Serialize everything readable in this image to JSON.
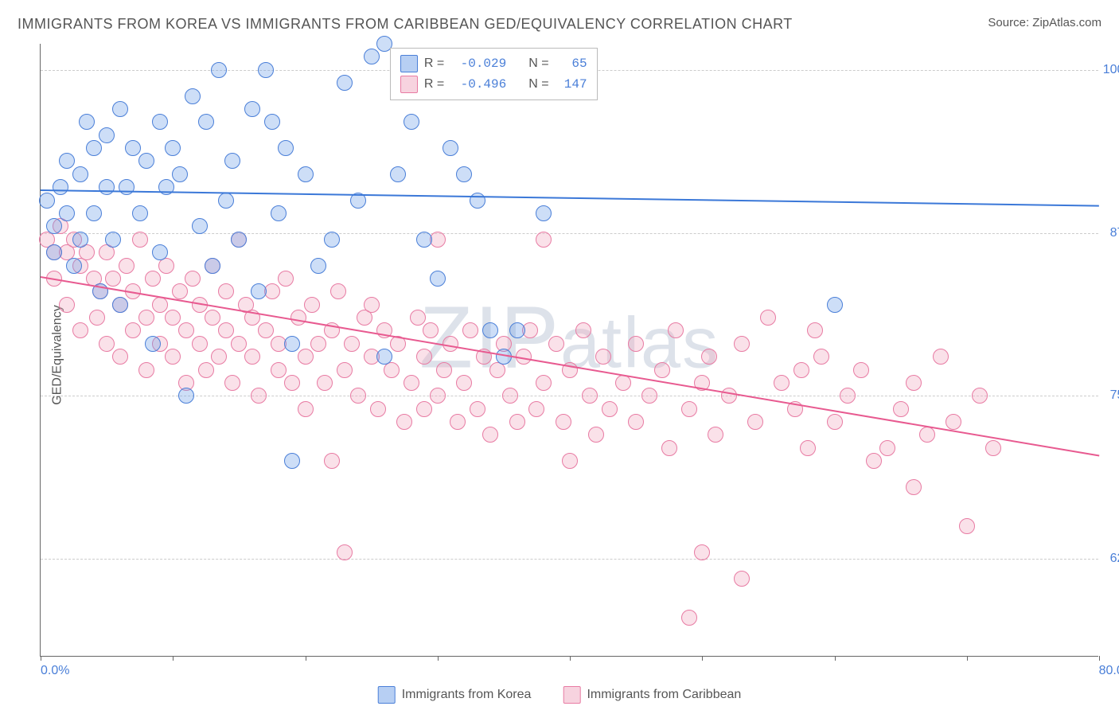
{
  "title": "IMMIGRANTS FROM KOREA VS IMMIGRANTS FROM CARIBBEAN GED/EQUIVALENCY CORRELATION CHART",
  "source_label": "Source:",
  "source_name": "ZipAtlas.com",
  "watermark": "ZIPatlas",
  "chart": {
    "type": "scatter",
    "xlim": [
      0,
      80
    ],
    "ylim": [
      55,
      102
    ],
    "xtick_labels": [
      "0.0%",
      "80.0%"
    ],
    "xtick_positions": [
      0,
      80
    ],
    "xtick_marks": [
      0,
      10,
      20,
      30,
      40,
      50,
      60,
      70,
      80
    ],
    "ytick_labels": [
      "62.5%",
      "75.0%",
      "87.5%",
      "100.0%"
    ],
    "ytick_positions": [
      62.5,
      75.0,
      87.5,
      100.0
    ],
    "ylabel": "GED/Equivalency",
    "background_color": "#ffffff",
    "grid_color": "#cccccc",
    "marker_radius": 10,
    "marker_opacity": 0.45,
    "series": [
      {
        "name": "Immigrants from Korea",
        "color": "#6fa0e8",
        "stroke": "#4a7fd8",
        "fill": "rgba(111,160,232,0.35)",
        "R": "-0.029",
        "N": "65",
        "regression": {
          "x1": 0,
          "y1": 90.8,
          "x2": 80,
          "y2": 89.6,
          "color": "#3b78d8",
          "width": 2
        },
        "points": [
          [
            0.5,
            90
          ],
          [
            1,
            88
          ],
          [
            1,
            86
          ],
          [
            1.5,
            91
          ],
          [
            2,
            89
          ],
          [
            2,
            93
          ],
          [
            2.5,
            85
          ],
          [
            3,
            92
          ],
          [
            3,
            87
          ],
          [
            3.5,
            96
          ],
          [
            4,
            94
          ],
          [
            4,
            89
          ],
          [
            4.5,
            83
          ],
          [
            5,
            91
          ],
          [
            5,
            95
          ],
          [
            5.5,
            87
          ],
          [
            6,
            97
          ],
          [
            6,
            82
          ],
          [
            6.5,
            91
          ],
          [
            7,
            94
          ],
          [
            7.5,
            89
          ],
          [
            8,
            93
          ],
          [
            8.5,
            79
          ],
          [
            9,
            96
          ],
          [
            9,
            86
          ],
          [
            9.5,
            91
          ],
          [
            10,
            94
          ],
          [
            10.5,
            92
          ],
          [
            11,
            75
          ],
          [
            11.5,
            98
          ],
          [
            12,
            88
          ],
          [
            12.5,
            96
          ],
          [
            13,
            85
          ],
          [
            13.5,
            100
          ],
          [
            14,
            90
          ],
          [
            14.5,
            93
          ],
          [
            15,
            87
          ],
          [
            16,
            97
          ],
          [
            16.5,
            83
          ],
          [
            17,
            100
          ],
          [
            17.5,
            96
          ],
          [
            18,
            89
          ],
          [
            18.5,
            94
          ],
          [
            19,
            79
          ],
          [
            19,
            70
          ],
          [
            20,
            92
          ],
          [
            21,
            85
          ],
          [
            22,
            87
          ],
          [
            23,
            99
          ],
          [
            24,
            90
          ],
          [
            25,
            101
          ],
          [
            26,
            78
          ],
          [
            27,
            92
          ],
          [
            28,
            96
          ],
          [
            29,
            87
          ],
          [
            30,
            84
          ],
          [
            31,
            94
          ],
          [
            33,
            90
          ],
          [
            35,
            78
          ],
          [
            38,
            89
          ],
          [
            36,
            80
          ],
          [
            32,
            92
          ],
          [
            34,
            80
          ],
          [
            60,
            82
          ],
          [
            26,
            102
          ]
        ]
      },
      {
        "name": "Immigrants from Caribbean",
        "color": "#f0a8c0",
        "stroke": "#e87ba3",
        "fill": "rgba(240,168,192,0.35)",
        "R": "-0.496",
        "N": "147",
        "regression": {
          "x1": 0,
          "y1": 84.2,
          "x2": 80,
          "y2": 70.5,
          "color": "#e85a90",
          "width": 2
        },
        "points": [
          [
            0.5,
            87
          ],
          [
            1,
            86
          ],
          [
            1,
            84
          ],
          [
            1.5,
            88
          ],
          [
            2,
            86
          ],
          [
            2,
            82
          ],
          [
            2.5,
            87
          ],
          [
            3,
            85
          ],
          [
            3,
            80
          ],
          [
            3.5,
            86
          ],
          [
            4,
            84
          ],
          [
            4.3,
            81
          ],
          [
            4.5,
            83
          ],
          [
            5,
            86
          ],
          [
            5,
            79
          ],
          [
            5.5,
            84
          ],
          [
            6,
            82
          ],
          [
            6,
            78
          ],
          [
            6.5,
            85
          ],
          [
            7,
            80
          ],
          [
            7,
            83
          ],
          [
            7.5,
            87
          ],
          [
            8,
            81
          ],
          [
            8,
            77
          ],
          [
            8.5,
            84
          ],
          [
            9,
            79
          ],
          [
            9,
            82
          ],
          [
            9.5,
            85
          ],
          [
            10,
            78
          ],
          [
            10,
            81
          ],
          [
            10.5,
            83
          ],
          [
            11,
            76
          ],
          [
            11,
            80
          ],
          [
            11.5,
            84
          ],
          [
            12,
            79
          ],
          [
            12,
            82
          ],
          [
            12.5,
            77
          ],
          [
            13,
            81
          ],
          [
            13,
            85
          ],
          [
            13.5,
            78
          ],
          [
            14,
            80
          ],
          [
            14,
            83
          ],
          [
            14.5,
            76
          ],
          [
            15,
            79
          ],
          [
            15,
            87
          ],
          [
            15.5,
            82
          ],
          [
            16,
            78
          ],
          [
            16,
            81
          ],
          [
            16.5,
            75
          ],
          [
            17,
            80
          ],
          [
            17.5,
            83
          ],
          [
            18,
            77
          ],
          [
            18,
            79
          ],
          [
            18.5,
            84
          ],
          [
            19,
            76
          ],
          [
            19.5,
            81
          ],
          [
            20,
            78
          ],
          [
            20,
            74
          ],
          [
            20.5,
            82
          ],
          [
            21,
            79
          ],
          [
            21.5,
            76
          ],
          [
            22,
            80
          ],
          [
            22,
            70
          ],
          [
            22.5,
            83
          ],
          [
            23,
            77
          ],
          [
            23,
            63
          ],
          [
            23.5,
            79
          ],
          [
            24,
            75
          ],
          [
            24.5,
            81
          ],
          [
            25,
            78
          ],
          [
            25,
            82
          ],
          [
            25.5,
            74
          ],
          [
            26,
            80
          ],
          [
            26.5,
            77
          ],
          [
            27,
            79
          ],
          [
            27.5,
            73
          ],
          [
            28,
            76
          ],
          [
            28.5,
            81
          ],
          [
            29,
            78
          ],
          [
            29,
            74
          ],
          [
            29.5,
            80
          ],
          [
            30,
            75
          ],
          [
            30,
            87
          ],
          [
            30.5,
            77
          ],
          [
            31,
            79
          ],
          [
            31.5,
            73
          ],
          [
            32,
            76
          ],
          [
            32.5,
            80
          ],
          [
            33,
            74
          ],
          [
            33.5,
            78
          ],
          [
            34,
            72
          ],
          [
            34.5,
            77
          ],
          [
            35,
            79
          ],
          [
            35.5,
            75
          ],
          [
            36,
            73
          ],
          [
            36.5,
            78
          ],
          [
            37,
            80
          ],
          [
            37.5,
            74
          ],
          [
            38,
            76
          ],
          [
            38,
            87
          ],
          [
            39,
            79
          ],
          [
            39.5,
            73
          ],
          [
            40,
            77
          ],
          [
            40,
            70
          ],
          [
            41,
            80
          ],
          [
            41.5,
            75
          ],
          [
            42,
            72
          ],
          [
            42.5,
            78
          ],
          [
            43,
            74
          ],
          [
            44,
            76
          ],
          [
            45,
            79
          ],
          [
            45,
            73
          ],
          [
            46,
            75
          ],
          [
            47,
            77
          ],
          [
            47.5,
            71
          ],
          [
            48,
            80
          ],
          [
            49,
            74
          ],
          [
            49,
            58
          ],
          [
            50,
            76
          ],
          [
            50.5,
            78
          ],
          [
            50,
            63
          ],
          [
            51,
            72
          ],
          [
            52,
            75
          ],
          [
            53,
            79
          ],
          [
            53,
            61
          ],
          [
            54,
            73
          ],
          [
            55,
            81
          ],
          [
            56,
            76
          ],
          [
            57,
            74
          ],
          [
            57.5,
            77
          ],
          [
            58,
            71
          ],
          [
            58.5,
            80
          ],
          [
            59,
            78
          ],
          [
            60,
            73
          ],
          [
            61,
            75
          ],
          [
            62,
            77
          ],
          [
            63,
            70
          ],
          [
            64,
            71
          ],
          [
            65,
            74
          ],
          [
            66,
            76
          ],
          [
            66,
            68
          ],
          [
            67,
            72
          ],
          [
            68,
            78
          ],
          [
            69,
            73
          ],
          [
            70,
            65
          ],
          [
            71,
            75
          ],
          [
            72,
            71
          ]
        ]
      }
    ]
  },
  "legend_top": {
    "rows": [
      {
        "swatch_fill": "rgba(111,160,232,0.5)",
        "swatch_stroke": "#4a7fd8",
        "R_label": "R =",
        "R": "-0.029",
        "N_label": "N =",
        "N": "65"
      },
      {
        "swatch_fill": "rgba(240,168,192,0.5)",
        "swatch_stroke": "#e87ba3",
        "R_label": "R =",
        "R": "-0.496",
        "N_label": "N =",
        "N": "147"
      }
    ]
  },
  "legend_bottom": {
    "items": [
      {
        "swatch_fill": "rgba(111,160,232,0.5)",
        "swatch_stroke": "#4a7fd8",
        "label": "Immigrants from Korea"
      },
      {
        "swatch_fill": "rgba(240,168,192,0.5)",
        "swatch_stroke": "#e87ba3",
        "label": "Immigrants from Caribbean"
      }
    ]
  }
}
